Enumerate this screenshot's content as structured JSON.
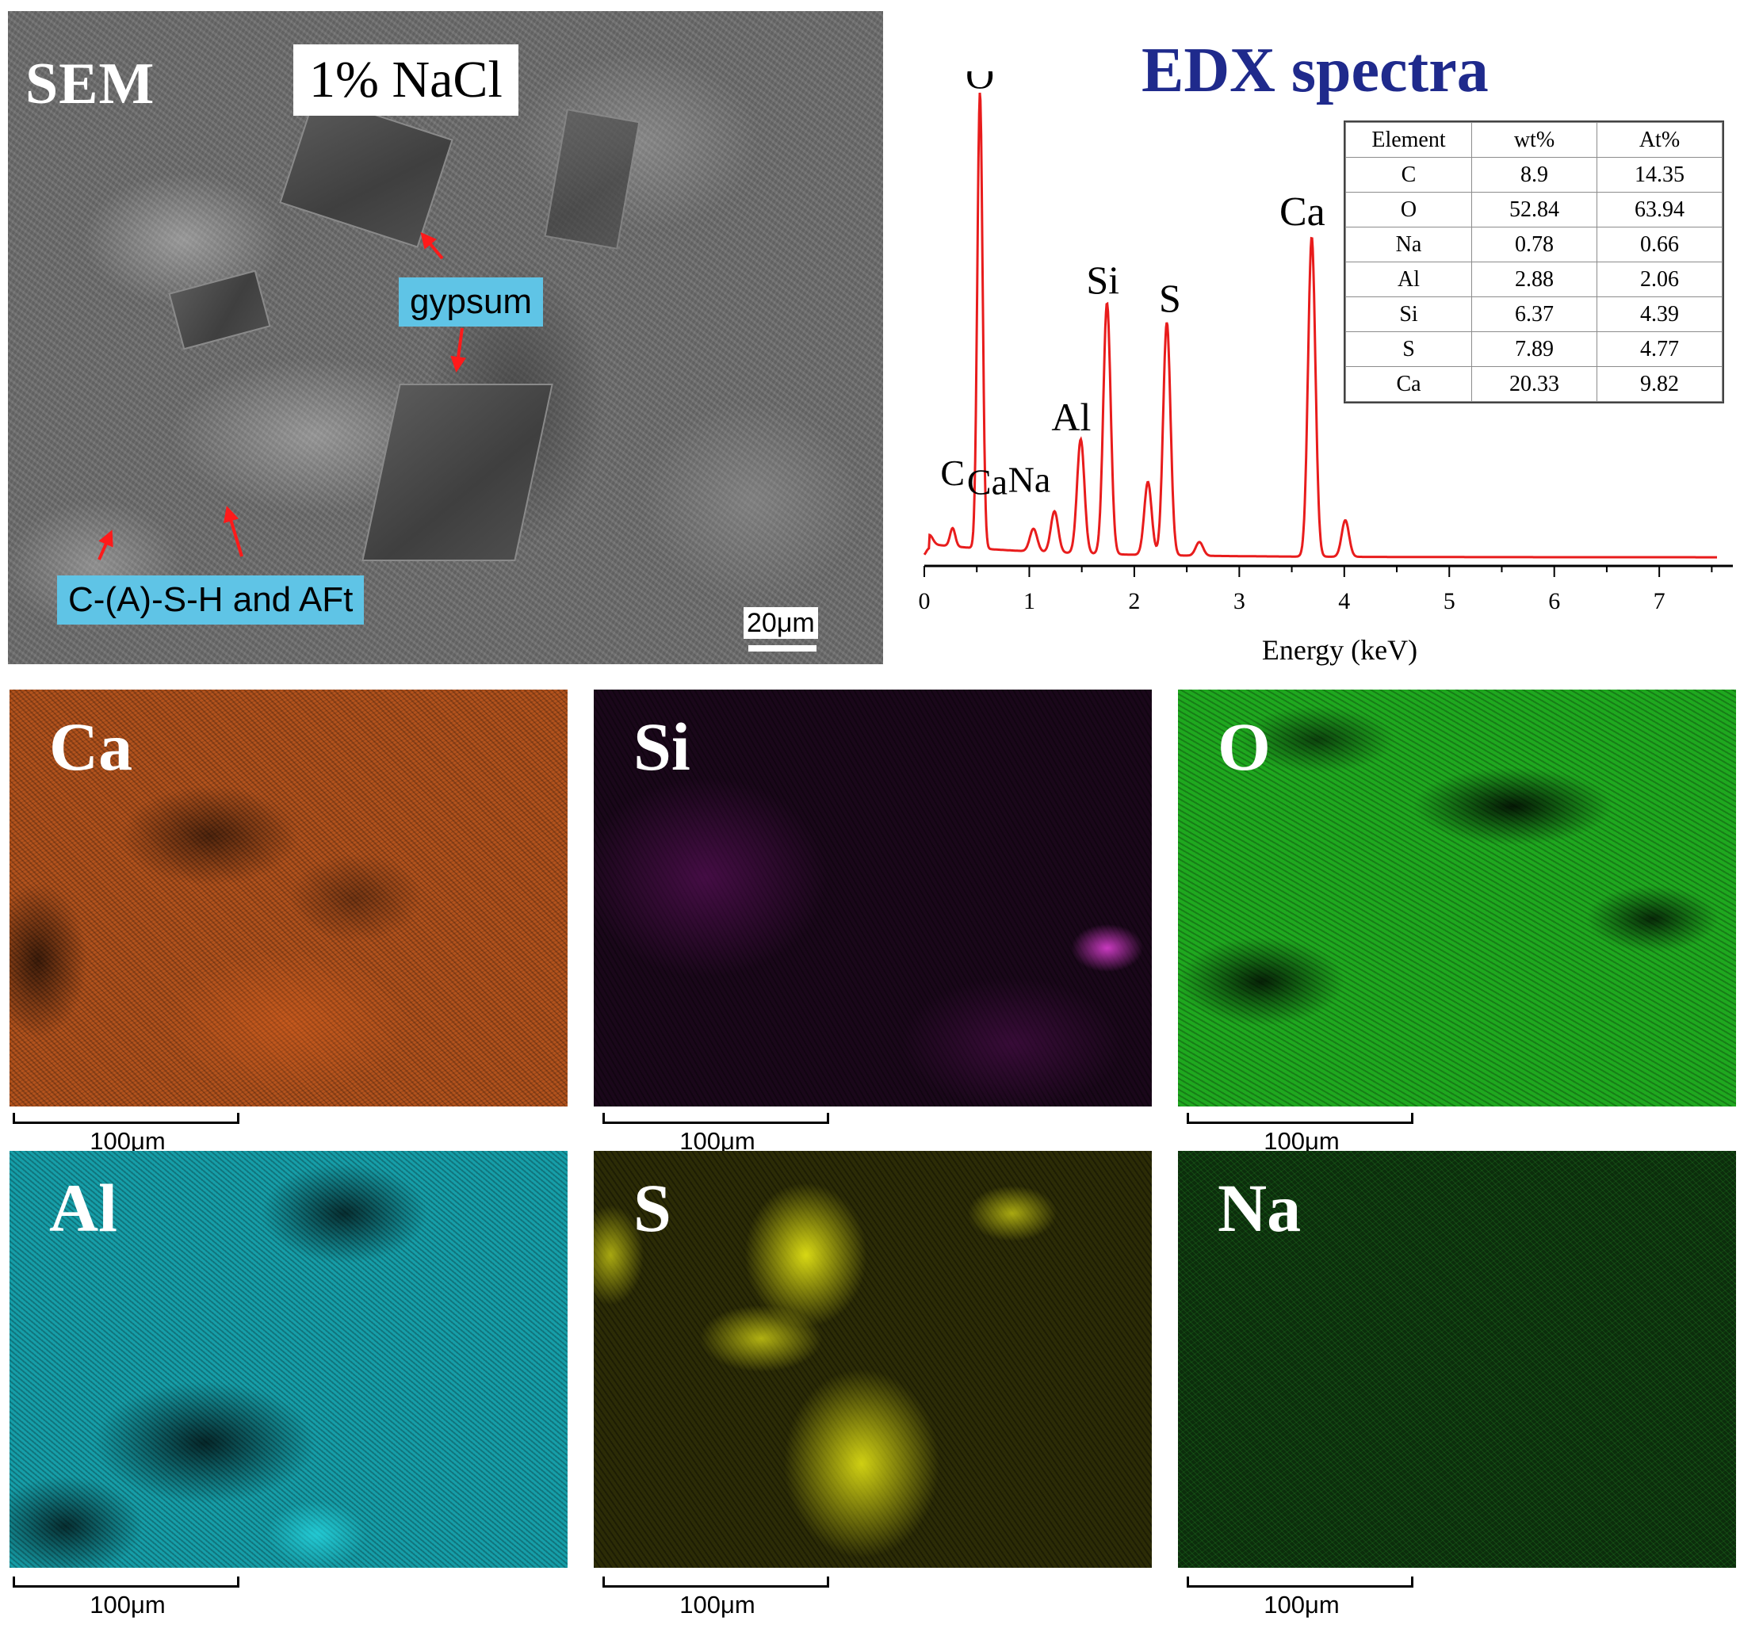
{
  "sem": {
    "title": "SEM",
    "sample": "1% NaCl",
    "annotations": [
      "gypsum",
      "C-(A)-S-H and AFt"
    ],
    "scale": "20μm"
  },
  "edx": {
    "title": "EDX spectra",
    "xlabel": "Energy (keV)",
    "table": {
      "headers": [
        "Element",
        "wt%",
        "At%"
      ],
      "rows": [
        [
          "C",
          "8.9",
          "14.35"
        ],
        [
          "O",
          "52.84",
          "63.94"
        ],
        [
          "Na",
          "0.78",
          "0.66"
        ],
        [
          "Al",
          "2.88",
          "2.06"
        ],
        [
          "Si",
          "6.37",
          "4.39"
        ],
        [
          "S",
          "7.89",
          "4.77"
        ],
        [
          "Ca",
          "20.33",
          "9.82"
        ]
      ]
    }
  },
  "maps": [
    {
      "element": "Ca",
      "color": "#b3531d",
      "scale": "100μm"
    },
    {
      "element": "Si",
      "color": "#c03cc0",
      "scale": "100μm"
    },
    {
      "element": "O",
      "color": "#1fa81f",
      "scale": "100μm"
    },
    {
      "element": "Al",
      "color": "#169ea8",
      "scale": "100μm"
    },
    {
      "element": "S",
      "color": "#d6d616",
      "scale": "100μm"
    },
    {
      "element": "Na",
      "color": "#2aa02a",
      "scale": "100μm"
    }
  ],
  "chart_data": {
    "type": "line",
    "title": "EDX spectra",
    "xlabel": "Energy (keV)",
    "ylabel": "",
    "xlim": [
      0,
      7.55
    ],
    "ylim": [
      0,
      1.0
    ],
    "xticks": [
      0,
      1,
      2,
      3,
      4,
      5,
      6,
      7
    ],
    "line_color": "#e81c1c",
    "peaks": [
      {
        "label": "C",
        "x": 0.27,
        "y": 0.04
      },
      {
        "label": "O",
        "x": 0.53,
        "y": 1.0
      },
      {
        "label": "Ca",
        "x": 0.34,
        "y": 0.0
      },
      {
        "label": "Na",
        "x": 1.04,
        "y": 0.05
      },
      {
        "label": "",
        "x": 1.24,
        "y": 0.09
      },
      {
        "label": "Al",
        "x": 1.49,
        "y": 0.25
      },
      {
        "label": "Si",
        "x": 1.74,
        "y": 0.55
      },
      {
        "label": "",
        "x": 2.13,
        "y": 0.16
      },
      {
        "label": "S",
        "x": 2.31,
        "y": 0.51
      },
      {
        "label": "",
        "x": 2.62,
        "y": 0.03
      },
      {
        "label": "Ca",
        "x": 3.69,
        "y": 0.7
      },
      {
        "label": "",
        "x": 4.01,
        "y": 0.08
      }
    ]
  }
}
